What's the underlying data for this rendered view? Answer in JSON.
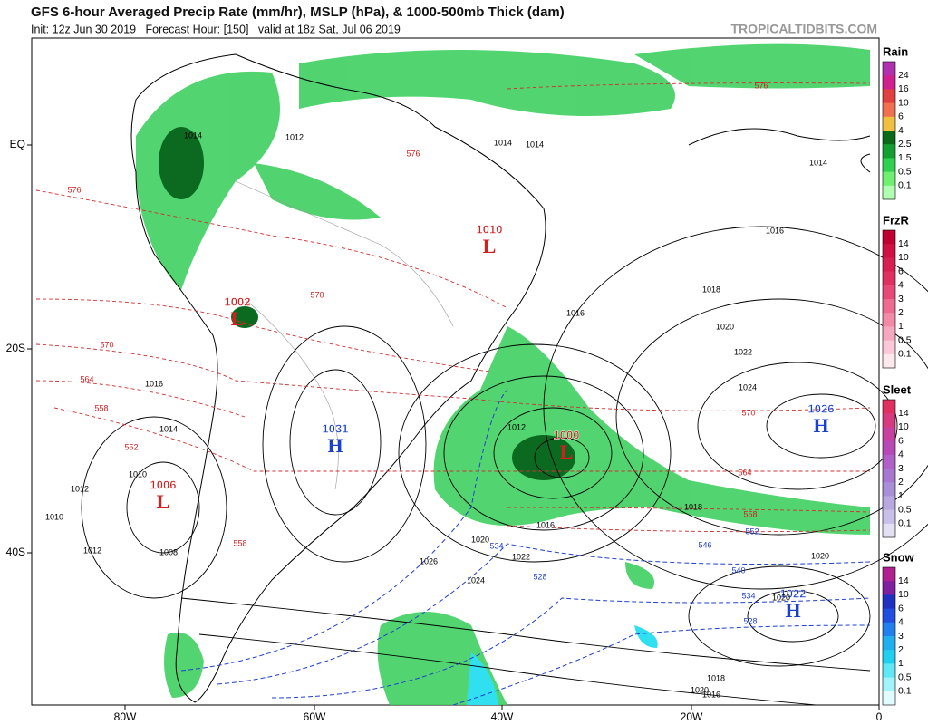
{
  "header": {
    "title": "GFS 6-hour Averaged Precip Rate (mm/hr), MSLP (hPa), & 1000-500mb Thick (dam)",
    "init": "Init: 12z Jun 30 2019   Forecast Hour: [150]   valid at 18z Sat, Jul 06 2019",
    "site": "TROPICALTIDBITS.COM"
  },
  "axes": {
    "lat_labels": [
      "EQ",
      "20S",
      "40S"
    ],
    "lon_labels": [
      "80W",
      "60W",
      "40W",
      "20W",
      "0"
    ]
  },
  "legends": [
    {
      "title": "Rain",
      "labels": [
        24,
        16,
        10,
        6,
        4,
        2.5,
        1.5,
        0.5,
        0.1
      ],
      "colors": [
        "#b030b0",
        "#d02090",
        "#e04040",
        "#f07050",
        "#f0c040",
        "#0a6a1a",
        "#14a030",
        "#30d050",
        "#70f070",
        "#b0ffb0"
      ]
    },
    {
      "title": "FrzR",
      "labels": [
        14,
        10,
        6,
        4,
        3,
        2,
        1,
        0.5,
        0.1
      ],
      "colors": [
        "#c00030",
        "#d01040",
        "#d82050",
        "#e03060",
        "#e84a78",
        "#ee6a90",
        "#f28aa8",
        "#f6a8c0",
        "#fac8d8",
        "#fde8ee"
      ]
    },
    {
      "title": "Sleet",
      "labels": [
        14,
        10,
        6,
        4,
        3,
        2,
        1,
        0.5,
        0.1
      ],
      "colors": [
        "#e03060",
        "#d83a80",
        "#c840a0",
        "#b848b8",
        "#b060c8",
        "#a878d0",
        "#a890d8",
        "#b8a8e0",
        "#c8c0e8",
        "#e4e0f4"
      ]
    },
    {
      "title": "Snow",
      "labels": [
        14,
        10,
        6,
        4,
        3,
        2,
        1,
        0.5,
        0.1
      ],
      "colors": [
        "#b02090",
        "#8020a0",
        "#2030c0",
        "#2050e0",
        "#2080f0",
        "#20b0f0",
        "#20d0f0",
        "#60e8f8",
        "#a0f4fc",
        "#e0fcff"
      ]
    }
  ],
  "pressure_centers": [
    {
      "symbol": "L",
      "value": "1010"
    },
    {
      "symbol": "L",
      "value": "1002"
    },
    {
      "symbol": "L",
      "value": "1006"
    },
    {
      "symbol": "H",
      "value": "1031"
    },
    {
      "symbol": "L",
      "value": "1000"
    },
    {
      "symbol": "H",
      "value": "1026"
    },
    {
      "symbol": "H",
      "value": "1022"
    }
  ],
  "contour_labels": [
    "1014",
    "1012",
    "1014",
    "1014",
    "1014",
    "576",
    "576",
    "1016",
    "1018",
    "1016",
    "1020",
    "1022",
    "1024",
    "570",
    "564",
    "558",
    "552",
    "546",
    "1020",
    "540",
    "534",
    "528",
    "1020",
    "1018",
    "1016",
    "1026",
    "1024",
    "1022",
    "1020",
    "534",
    "528",
    "570",
    "564",
    "558",
    "552",
    "1016",
    "1014",
    "1010",
    "1012",
    "1010",
    "1012",
    "1008",
    "558",
    "1020",
    "1016",
    "1018",
    "1012",
    "576",
    "570"
  ]
}
